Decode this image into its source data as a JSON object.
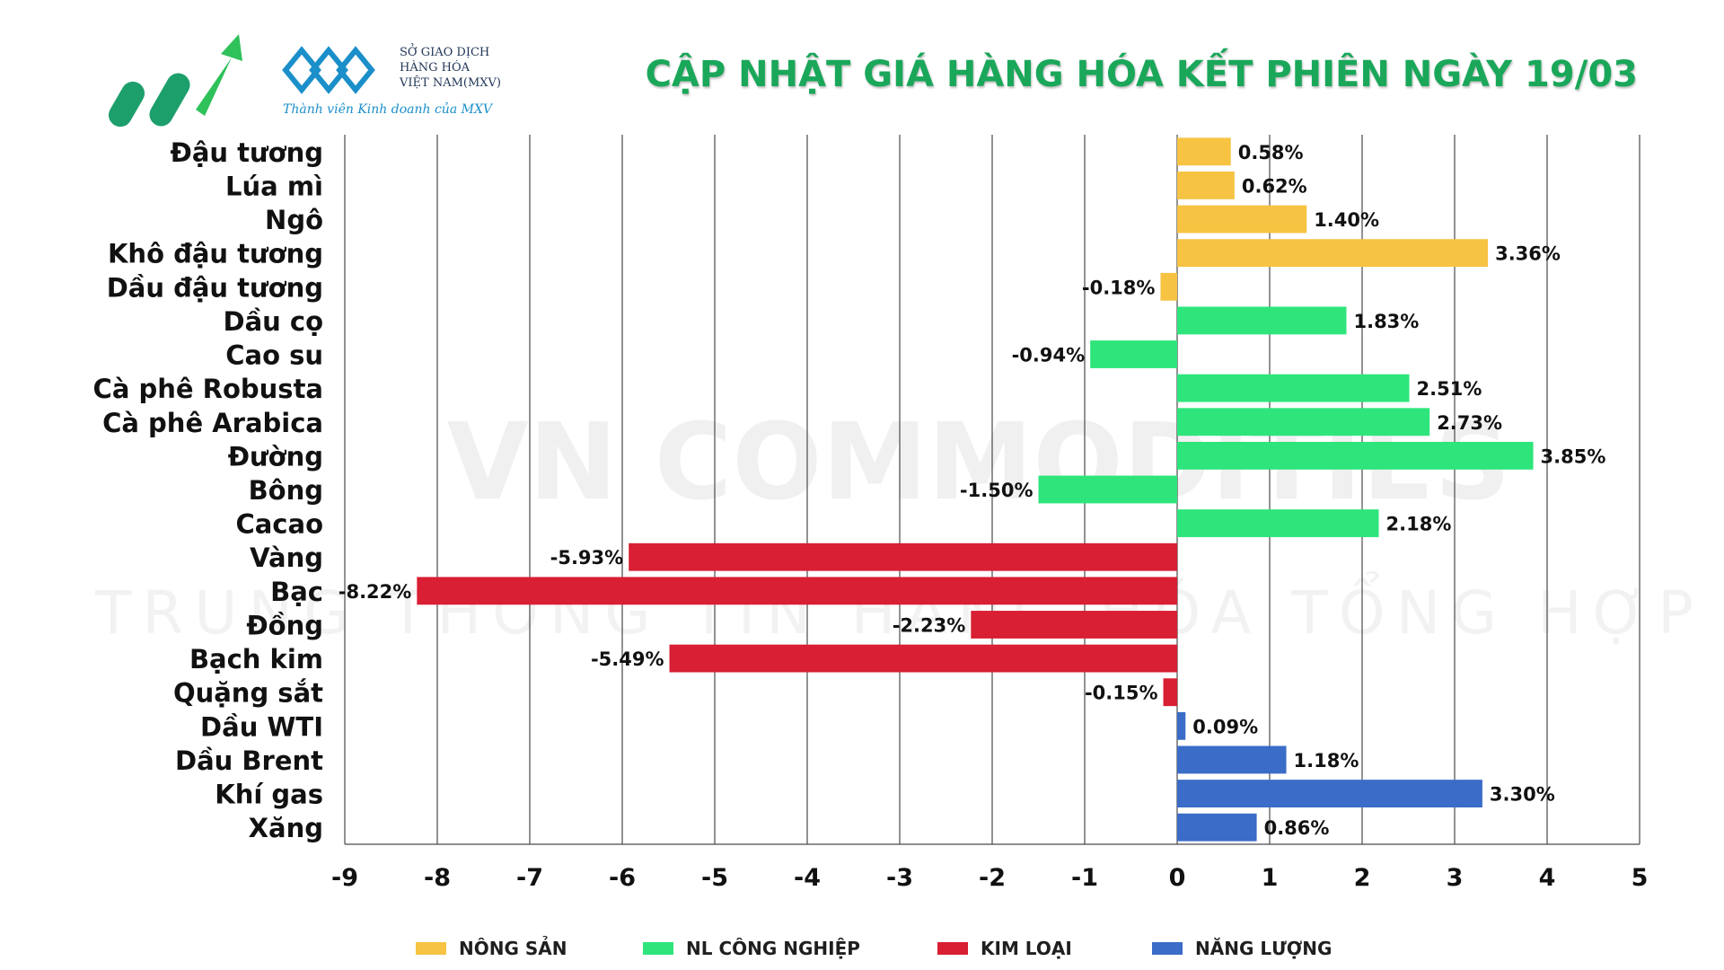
{
  "header": {
    "exchange_name_lines": [
      "SỞ GIAO DỊCH",
      "HÀNG HÓA",
      "VIỆT NAM(MXV)"
    ],
    "tagline": "Thành viên Kinh doanh của MXV",
    "title": "CẬP NHẬT GIÁ HÀNG HÓA KẾT PHIÊN NGÀY 19/03"
  },
  "watermark": {
    "line1": "VN COMMODITIES",
    "line2": "TRUNG THÔNG TIN HÀNG HÓA TỔNG HỢP"
  },
  "colors": {
    "NÔNG SẢN": "#f6c343",
    "NL CÔNG NGHIỆP": "#2ee57c",
    "KIM LOẠI": "#d81f33",
    "NĂNG LƯỢNG": "#3a6cc8"
  },
  "chart_data": {
    "type": "bar",
    "orientation": "horizontal",
    "xlim": [
      -9,
      5
    ],
    "xticks": [
      -9,
      -8,
      -7,
      -6,
      -5,
      -4,
      -3,
      -2,
      -1,
      0,
      1,
      2,
      3,
      4,
      5
    ],
    "grid": "vertical",
    "legend_position": "bottom",
    "categories": [
      "Đậu tương",
      "Lúa mì",
      "Ngô",
      "Khô đậu tương",
      "Dầu đậu tương",
      "Dầu cọ",
      "Cao su",
      "Cà phê Robusta",
      "Cà phê Arabica",
      "Đường",
      "Bông",
      "Cacao",
      "Vàng",
      "Bạc",
      "Đồng",
      "Bạch kim",
      "Quặng sắt",
      "Dầu WTI",
      "Dầu Brent",
      "Khí gas",
      "Xăng"
    ],
    "values": [
      0.58,
      0.62,
      1.4,
      3.36,
      -0.18,
      1.83,
      -0.94,
      2.51,
      2.73,
      3.85,
      -1.5,
      2.18,
      -5.93,
      -8.22,
      -2.23,
      -5.49,
      -0.15,
      0.09,
      1.18,
      3.3,
      0.86
    ],
    "labels": [
      "0.58%",
      "0.62%",
      "1.40%",
      "3.36%",
      "-0.18%",
      "1.83%",
      "-0.94%",
      "2.51%",
      "2.73%",
      "3.85%",
      "-1.50%",
      "2.18%",
      "-5.93%",
      "-8.22%",
      "-2.23%",
      "-5.49%",
      "-0.15%",
      "0.09%",
      "1.18%",
      "3.30%",
      "0.86%"
    ],
    "groups": [
      "NÔNG SẢN",
      "NÔNG SẢN",
      "NÔNG SẢN",
      "NÔNG SẢN",
      "NÔNG SẢN",
      "NL CÔNG NGHIỆP",
      "NL CÔNG NGHIỆP",
      "NL CÔNG NGHIỆP",
      "NL CÔNG NGHIỆP",
      "NL CÔNG NGHIỆP",
      "NL CÔNG NGHIỆP",
      "NL CÔNG NGHIỆP",
      "KIM LOẠI",
      "KIM LOẠI",
      "KIM LOẠI",
      "KIM LOẠI",
      "KIM LOẠI",
      "NĂNG LƯỢNG",
      "NĂNG LƯỢNG",
      "NĂNG LƯỢNG",
      "NĂNG LƯỢNG"
    ],
    "legend": [
      "NÔNG SẢN",
      "NL CÔNG NGHIỆP",
      "KIM LOẠI",
      "NĂNG LƯỢNG"
    ]
  }
}
